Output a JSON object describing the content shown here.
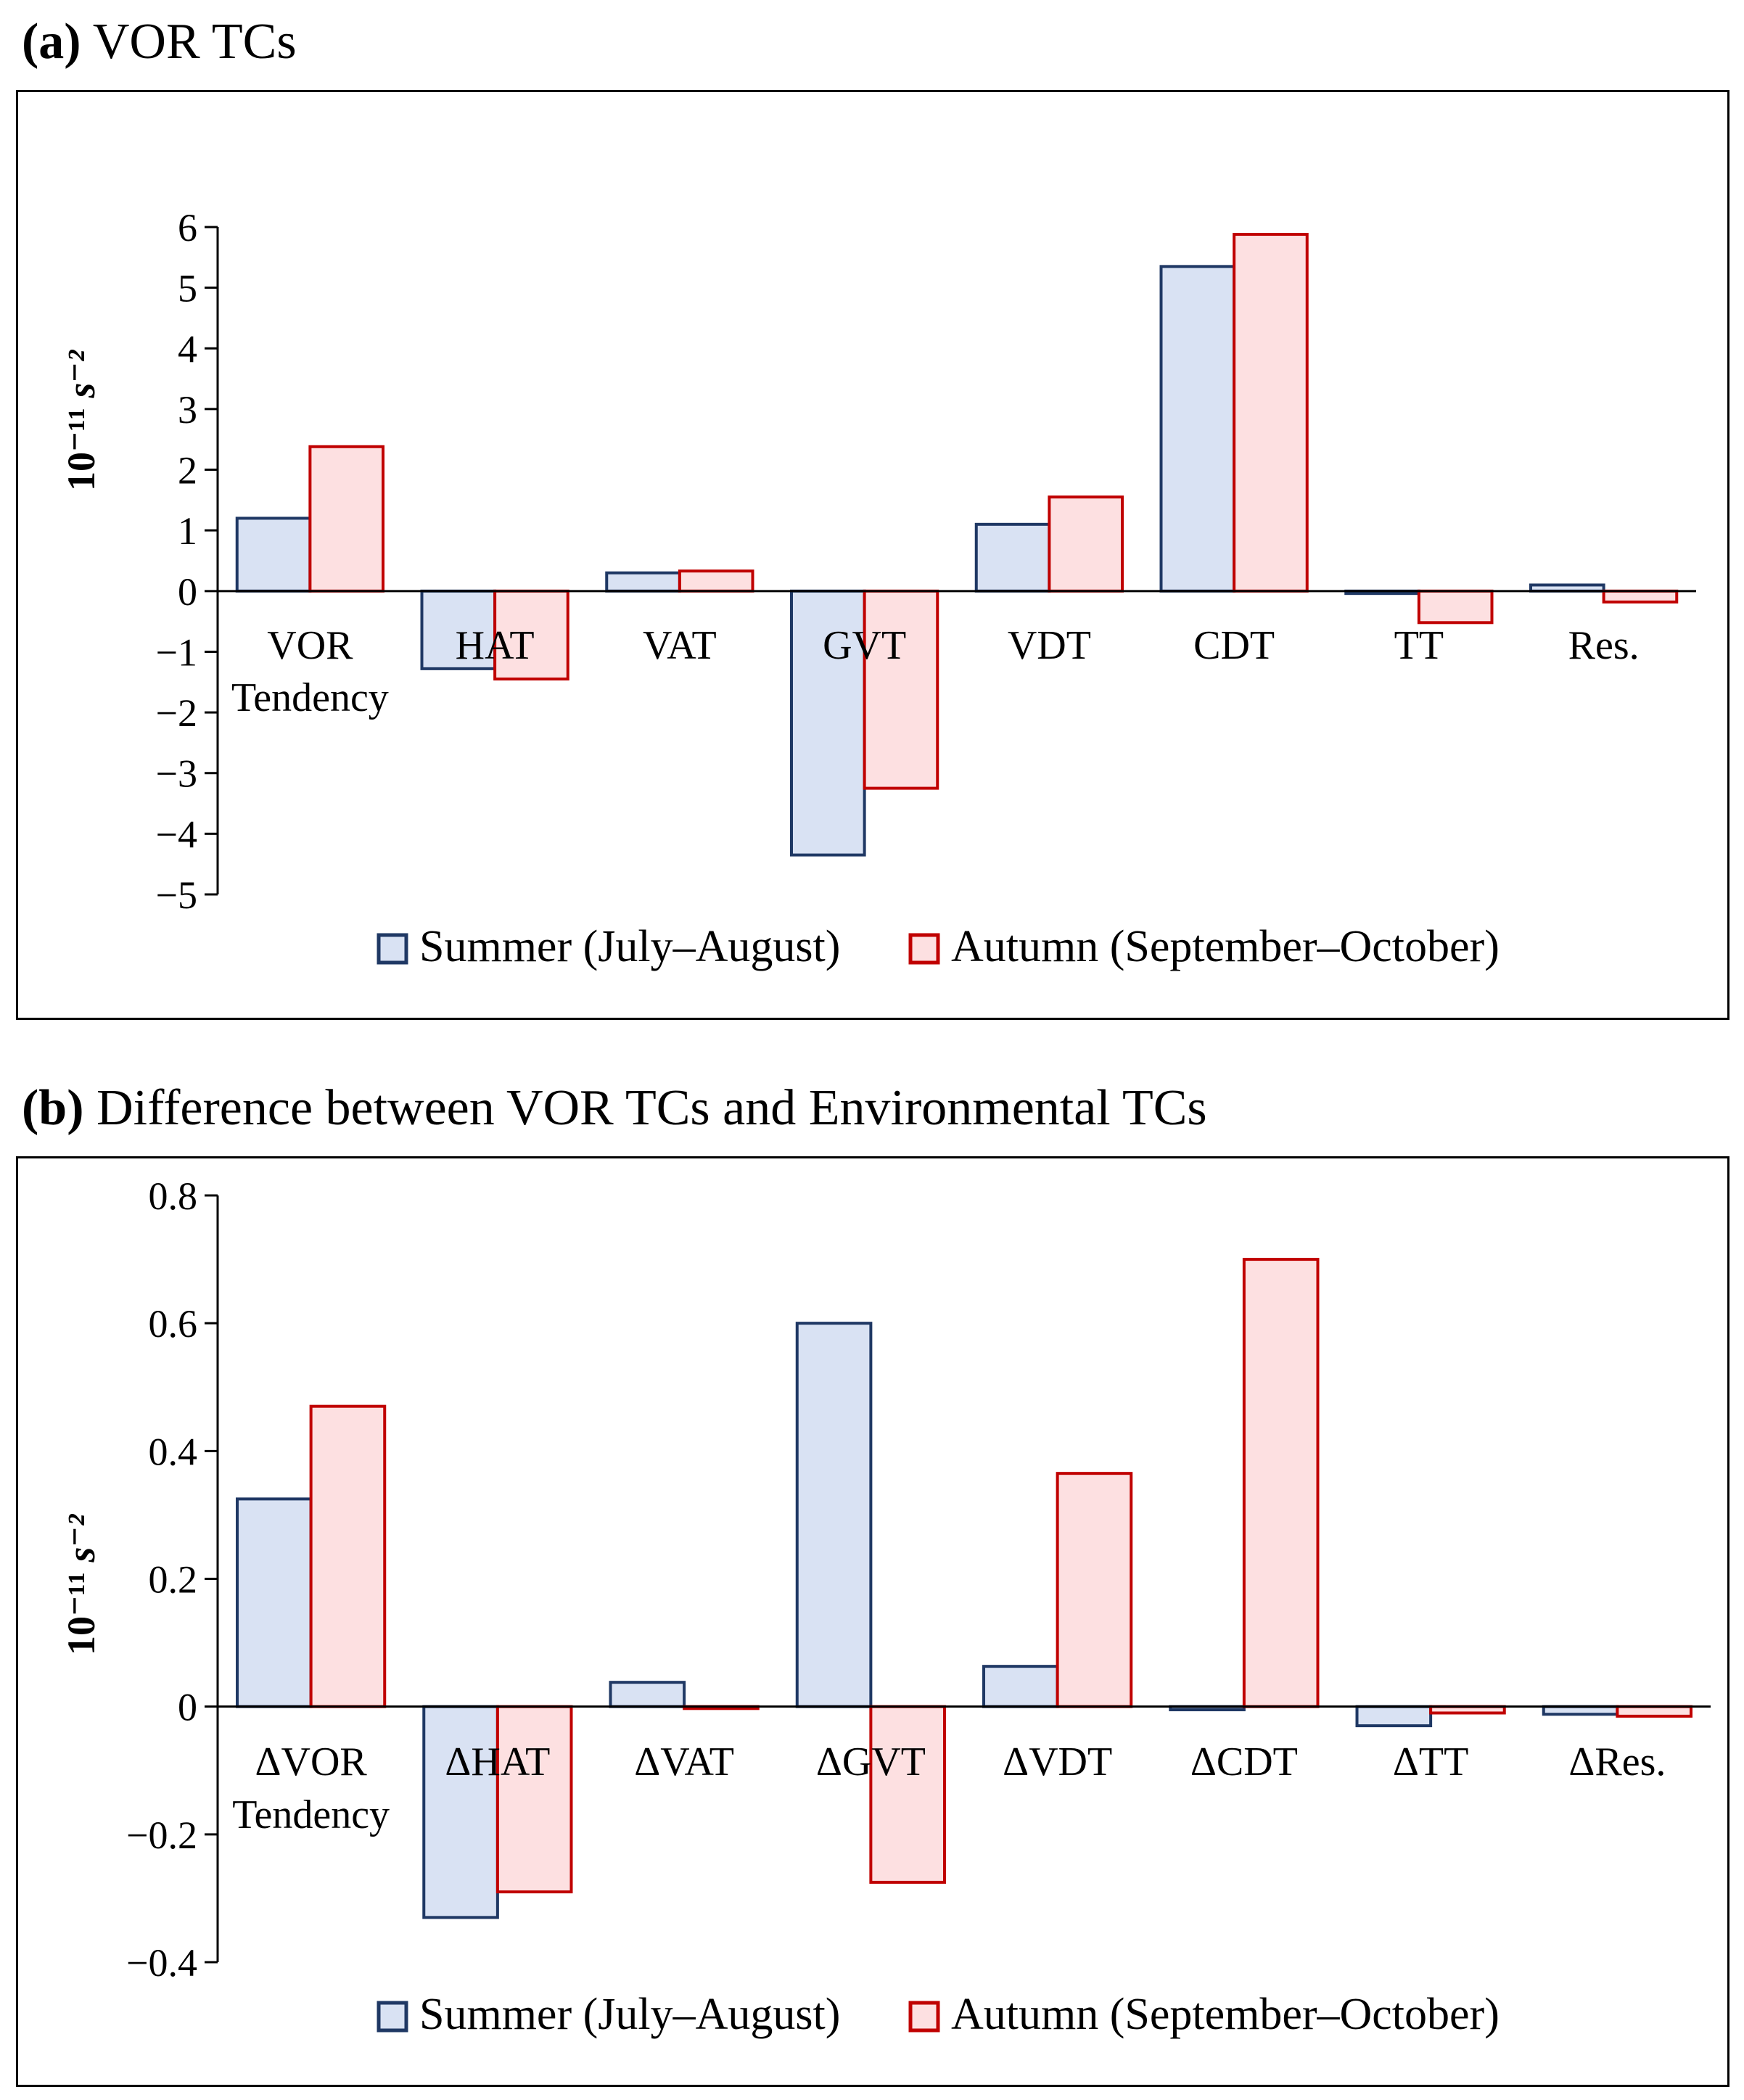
{
  "colors": {
    "summer_fill": "#d9e2f3",
    "summer_stroke": "#1f3864",
    "autumn_fill": "#fde0e1",
    "autumn_stroke": "#c00000"
  },
  "chart_data": [
    {
      "type": "bar",
      "panel_tag": "(a)",
      "title": "VOR TCs",
      "ylabel": "10⁻¹¹ s⁻²",
      "ylim": [
        -5,
        6
      ],
      "yticks": [
        6,
        5,
        4,
        3,
        2,
        1,
        0,
        -1,
        -2,
        -3,
        -4,
        -5
      ],
      "ytick_labels": [
        "6",
        "5",
        "4",
        "3",
        "2",
        "1",
        "0",
        "−1",
        "−2",
        "−3",
        "−4",
        "−5"
      ],
      "categories": [
        [
          "VOR",
          "Tendency"
        ],
        [
          "HAT"
        ],
        [
          "VAT"
        ],
        [
          "GVT"
        ],
        [
          "VDT"
        ],
        [
          "CDT"
        ],
        [
          "TT"
        ],
        [
          "Res."
        ]
      ],
      "series": [
        {
          "name": "Summer (July–August)",
          "values": [
            1.2,
            -1.28,
            0.3,
            -4.35,
            1.1,
            5.35,
            -0.04,
            0.1
          ]
        },
        {
          "name": "Autumn (September–October)",
          "values": [
            2.38,
            -1.45,
            0.33,
            -3.25,
            1.55,
            5.88,
            -0.52,
            -0.18
          ]
        }
      ],
      "legend": "bottom"
    },
    {
      "type": "bar",
      "panel_tag": "(b)",
      "title": "Difference between VOR TCs and Environmental TCs",
      "ylabel": "10⁻¹¹ s⁻²",
      "ylim": [
        -0.4,
        0.8
      ],
      "yticks": [
        0.8,
        0.6,
        0.4,
        0.2,
        0,
        -0.2,
        -0.4
      ],
      "ytick_labels": [
        "0.8",
        "0.6",
        "0.4",
        "0.2",
        "0",
        "−0.2",
        "−0.4"
      ],
      "categories": [
        [
          "ΔVOR",
          "Tendency"
        ],
        [
          "ΔHAT"
        ],
        [
          "ΔVAT"
        ],
        [
          "ΔGVT"
        ],
        [
          "ΔVDT"
        ],
        [
          "ΔCDT"
        ],
        [
          "ΔTT"
        ],
        [
          "ΔRes."
        ]
      ],
      "series": [
        {
          "name": "Summer (July–August)",
          "values": [
            0.325,
            -0.33,
            0.038,
            0.6,
            0.063,
            -0.005,
            -0.03,
            -0.012
          ]
        },
        {
          "name": "Autumn (September–October)",
          "values": [
            0.47,
            -0.29,
            -0.003,
            -0.275,
            0.365,
            0.7,
            -0.01,
            -0.015
          ]
        }
      ],
      "legend": "bottom"
    }
  ]
}
